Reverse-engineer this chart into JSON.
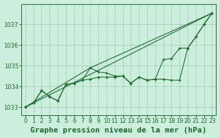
{
  "bg_color": "#cceedd",
  "grid_color": "#aaccbb",
  "line_color": "#1a6b2a",
  "title": "Graphe pression niveau de la mer (hPa)",
  "xlim": [
    -0.5,
    23.5
  ],
  "ylim": [
    1032.6,
    1038.0
  ],
  "yticks": [
    1033,
    1034,
    1035,
    1036,
    1037
  ],
  "xticks": [
    0,
    1,
    2,
    3,
    4,
    5,
    6,
    7,
    8,
    9,
    10,
    11,
    12,
    13,
    14,
    15,
    16,
    17,
    18,
    19,
    20,
    21,
    22,
    23
  ],
  "series": [
    {
      "x": [
        0,
        1,
        2,
        3,
        4,
        5,
        6,
        7,
        8,
        9,
        10,
        11,
        12,
        13,
        14,
        15,
        16,
        17,
        18,
        19,
        20,
        21,
        22,
        23
      ],
      "y": [
        1033.0,
        1033.2,
        1033.8,
        1033.5,
        1033.3,
        1034.1,
        1034.15,
        1034.3,
        1034.9,
        1034.7,
        1034.65,
        1034.5,
        1034.5,
        1034.15,
        1034.45,
        1034.3,
        1034.35,
        1034.35,
        1034.3,
        1034.3,
        1035.85,
        1036.4,
        1037.0,
        1037.55
      ],
      "marker": true
    },
    {
      "x": [
        0,
        1,
        2,
        3,
        4,
        5,
        6,
        7,
        8,
        9,
        10,
        11,
        12,
        13,
        14,
        15,
        16,
        17,
        18,
        19,
        20,
        21,
        22,
        23
      ],
      "y": [
        1033.0,
        1033.2,
        1033.8,
        1033.5,
        1033.3,
        1034.1,
        1034.15,
        1034.3,
        1034.35,
        1034.45,
        1034.45,
        1034.45,
        1034.5,
        1034.15,
        1034.45,
        1034.3,
        1034.35,
        1035.3,
        1035.35,
        1035.85,
        1035.85,
        1036.4,
        1037.0,
        1037.55
      ],
      "marker": true
    },
    {
      "x": [
        0,
        23
      ],
      "y": [
        1033.0,
        1037.55
      ],
      "marker": false
    },
    {
      "x": [
        0,
        8,
        23
      ],
      "y": [
        1033.0,
        1034.9,
        1037.55
      ],
      "marker": false
    }
  ],
  "title_fontsize": 8,
  "tick_fontsize": 6
}
